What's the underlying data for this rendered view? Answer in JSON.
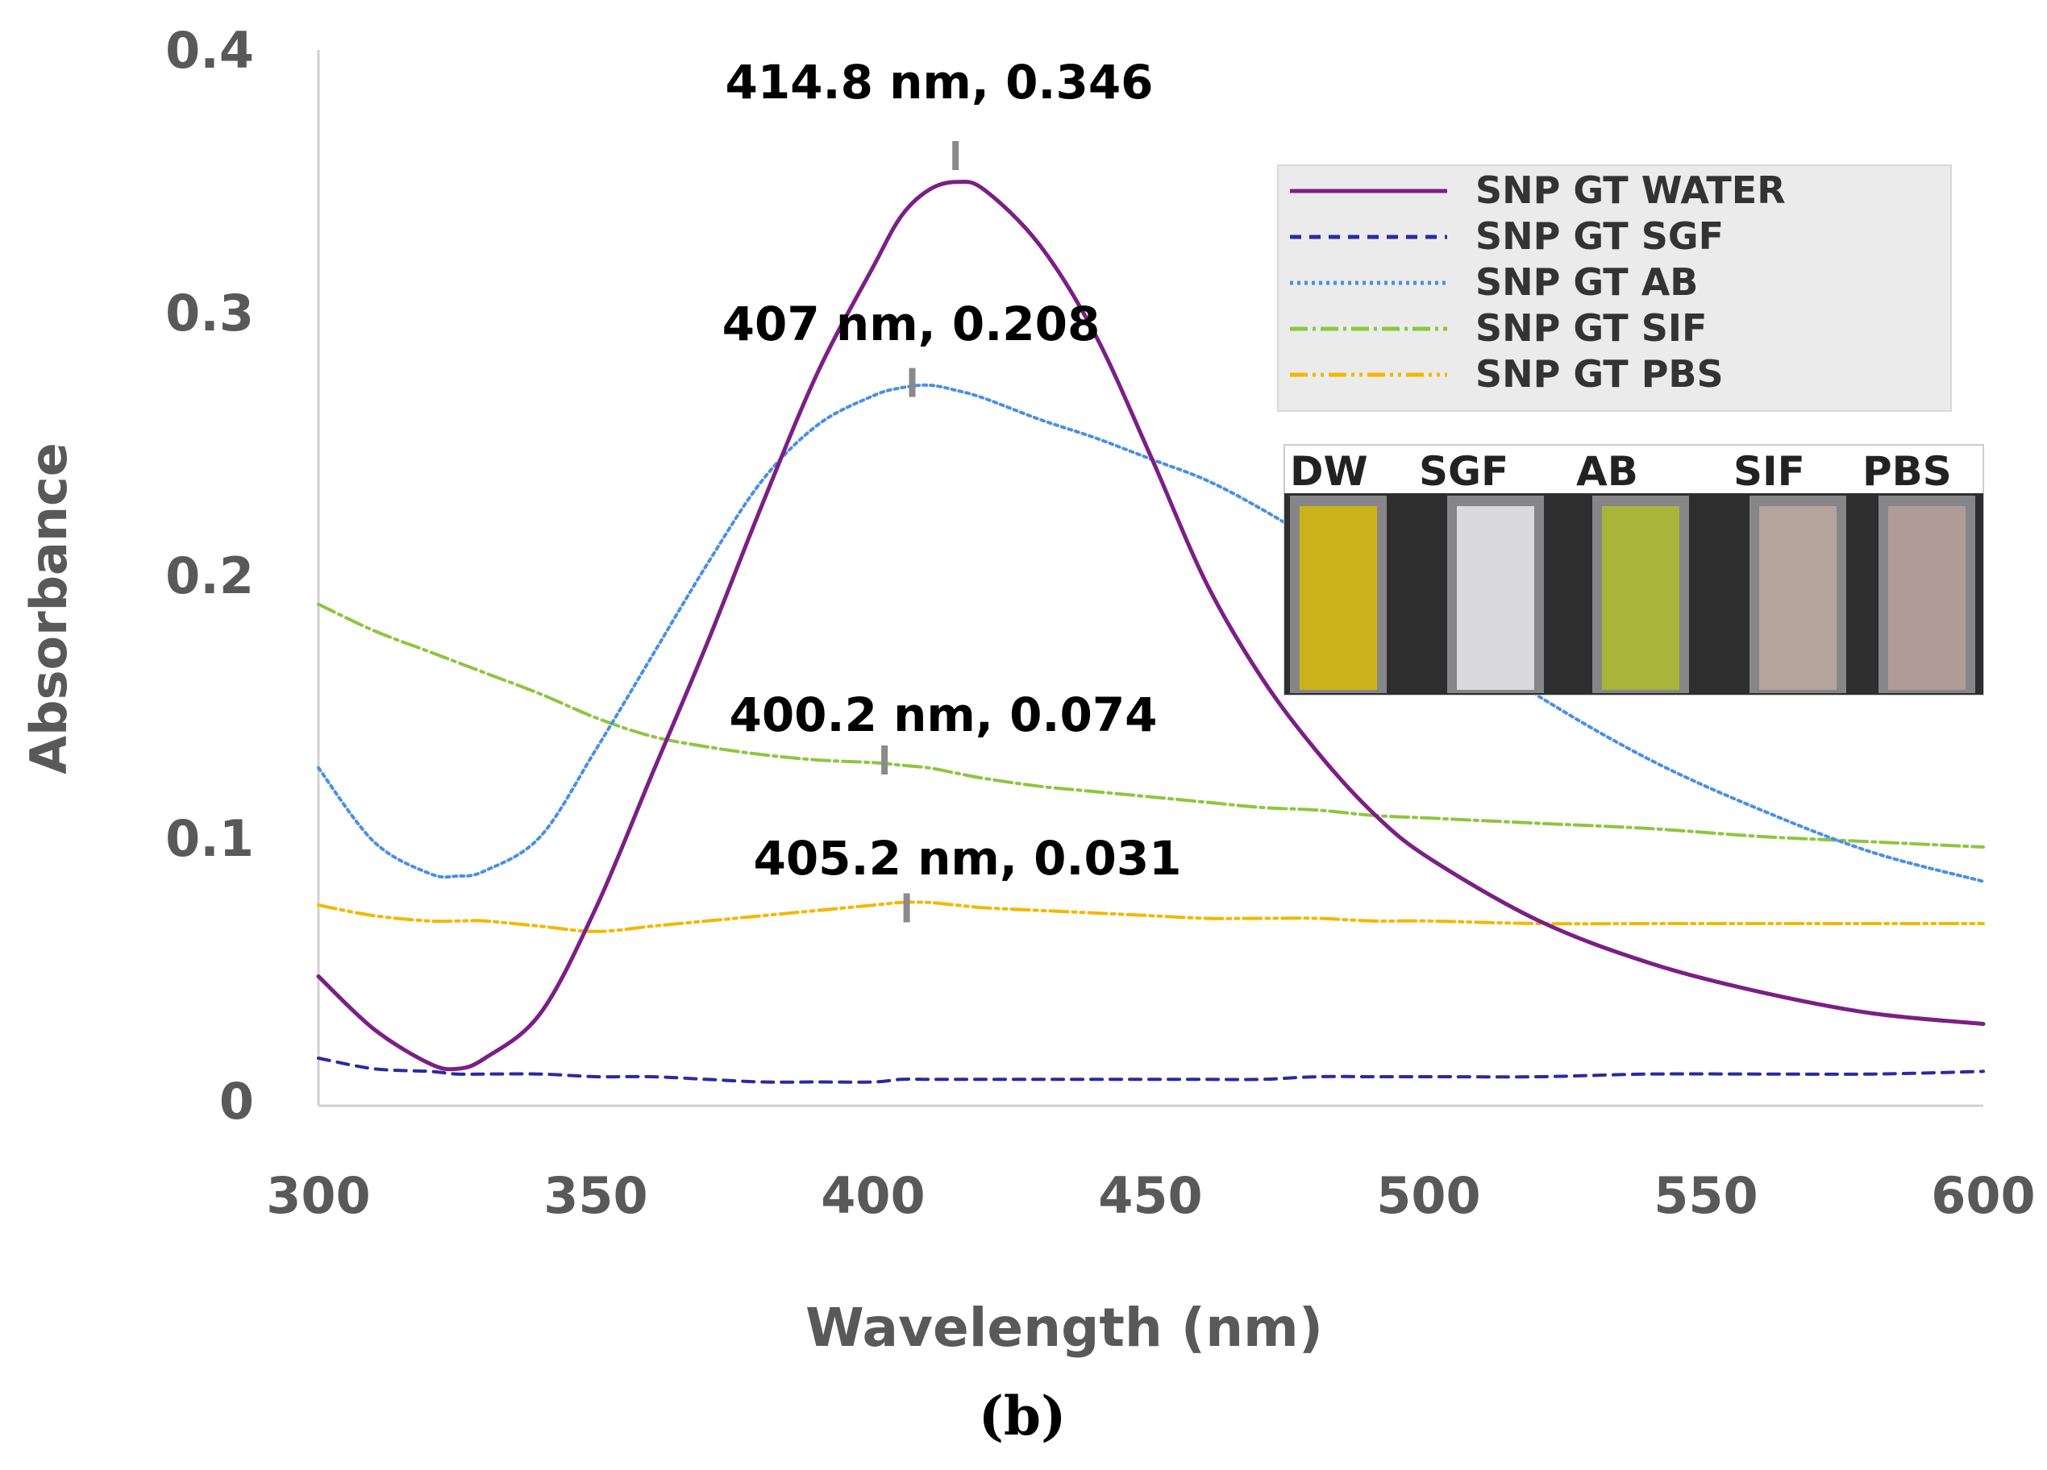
{
  "chart_data": {
    "type": "line",
    "title": "",
    "xlabel": "Wavelength (nm)",
    "ylabel": "Absorbance",
    "xlim": [
      300,
      600
    ],
    "ylim": [
      0,
      0.4
    ],
    "xticks": [
      "300",
      "350",
      "400",
      "450",
      "500",
      "550",
      "600"
    ],
    "yticks": [
      "0",
      "0.1",
      "0.2",
      "0.3",
      "0.4"
    ],
    "x": [
      300,
      310,
      320,
      325,
      330,
      340,
      350,
      360,
      370,
      380,
      390,
      400,
      405,
      410,
      415,
      420,
      430,
      440,
      450,
      460,
      470,
      480,
      490,
      500,
      520,
      540,
      560,
      580,
      600
    ],
    "series": [
      {
        "name": "SNP GT WATER",
        "color": "#7B1F86",
        "dash": "",
        "values": [
          0.049,
          0.029,
          0.016,
          0.014,
          0.018,
          0.035,
          0.075,
          0.125,
          0.175,
          0.228,
          0.278,
          0.318,
          0.337,
          0.347,
          0.35,
          0.347,
          0.326,
          0.292,
          0.246,
          0.198,
          0.162,
          0.134,
          0.111,
          0.094,
          0.07,
          0.054,
          0.043,
          0.035,
          0.031
        ]
      },
      {
        "name": "SNP GT SGF",
        "color": "#2A2AA0",
        "dash": "14 10",
        "values": [
          0.018,
          0.014,
          0.013,
          0.012,
          0.012,
          0.012,
          0.011,
          0.011,
          0.01,
          0.009,
          0.009,
          0.009,
          0.01,
          0.01,
          0.01,
          0.01,
          0.01,
          0.01,
          0.01,
          0.01,
          0.01,
          0.011,
          0.011,
          0.011,
          0.011,
          0.012,
          0.012,
          0.012,
          0.013
        ]
      },
      {
        "name": "SNP GT AB",
        "color": "#4A90E2",
        "dash": "4 5",
        "values": [
          0.128,
          0.1,
          0.088,
          0.087,
          0.089,
          0.102,
          0.135,
          0.17,
          0.205,
          0.237,
          0.258,
          0.269,
          0.272,
          0.273,
          0.271,
          0.268,
          0.26,
          0.253,
          0.245,
          0.237,
          0.226,
          0.213,
          0.198,
          0.183,
          0.155,
          0.131,
          0.112,
          0.096,
          0.085
        ]
      },
      {
        "name": "SNP GT SIF",
        "color": "#8DC63F",
        "dash": "22 6 4 6",
        "values": [
          0.19,
          0.18,
          0.172,
          0.168,
          0.164,
          0.156,
          0.147,
          0.14,
          0.136,
          0.133,
          0.131,
          0.13,
          0.129,
          0.128,
          0.126,
          0.124,
          0.121,
          0.119,
          0.117,
          0.115,
          0.113,
          0.112,
          0.11,
          0.109,
          0.107,
          0.105,
          0.102,
          0.1,
          0.098
        ]
      },
      {
        "name": "SNP GT PBS",
        "color": "#F2B800",
        "dash": "22 6 4 6 4 6",
        "values": [
          0.076,
          0.072,
          0.07,
          0.07,
          0.07,
          0.068,
          0.066,
          0.068,
          0.07,
          0.072,
          0.074,
          0.076,
          0.077,
          0.077,
          0.076,
          0.075,
          0.074,
          0.073,
          0.072,
          0.071,
          0.071,
          0.071,
          0.07,
          0.07,
          0.069,
          0.069,
          0.069,
          0.069,
          0.069
        ]
      }
    ],
    "annotations": [
      {
        "text": "414.8 nm, 0.346",
        "x": 414.8,
        "y": 0.36,
        "label_y": 0.388
      },
      {
        "text": "407 nm, 0.208",
        "x": 407,
        "y": 0.274,
        "label_y": 0.296
      },
      {
        "text": "400.2 nm, 0.074",
        "x": 402,
        "y": 0.131,
        "label_y": 0.148
      },
      {
        "text": "405.2 nm, 0.031",
        "x": 406,
        "y": 0.075,
        "label_y": 0.094
      }
    ],
    "legend_position": "top-right",
    "inset_labels": [
      "DW",
      "SGF",
      "AB",
      "SIF",
      "PBS"
    ],
    "vial_colors": [
      "#C9B21A",
      "#D9D9DE",
      "#A8B43A",
      "#B5A49C",
      "#B09C97"
    ],
    "panel_label": "(b)"
  }
}
